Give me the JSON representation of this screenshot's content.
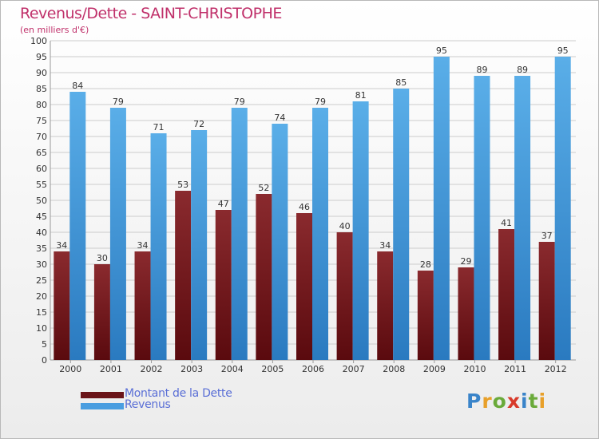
{
  "title": "Revenus/Dette - SAINT-CHRISTOPHE",
  "subtitle": "(en milliers d'€)",
  "legend": {
    "dette": "Montant de la Dette",
    "revenus": "Revenus"
  },
  "logo": {
    "text": "Proxiti",
    "letter_colors": [
      "#3a84c9",
      "#e8a02a",
      "#6aaa3a",
      "#d83a2a",
      "#3a84c9",
      "#6aaa3a",
      "#e8a02a"
    ]
  },
  "colors": {
    "dette_top": "#8a2a2e",
    "dette_bottom": "#5a0a0e",
    "revenus_top": "#5aaee8",
    "revenus_bottom": "#2a7ac0",
    "axis_text": "#333333",
    "grid": "#cccccc"
  },
  "chart_data": {
    "type": "bar",
    "title": "Revenus/Dette - SAINT-CHRISTOPHE",
    "subtitle": "(en milliers d'€)",
    "categories": [
      "2000",
      "2001",
      "2002",
      "2003",
      "2004",
      "2005",
      "2006",
      "2007",
      "2008",
      "2009",
      "2010",
      "2011",
      "2012"
    ],
    "series": [
      {
        "name": "Montant de la Dette",
        "values": [
          34,
          30,
          34,
          53,
          47,
          52,
          46,
          40,
          34,
          28,
          29,
          41,
          37
        ]
      },
      {
        "name": "Revenus",
        "values": [
          84,
          79,
          71,
          72,
          79,
          74,
          79,
          81,
          85,
          95,
          89,
          89,
          95
        ]
      }
    ],
    "ylim": [
      0,
      100
    ],
    "ystep": 5,
    "grid": true,
    "legend_position": "bottom-left"
  }
}
